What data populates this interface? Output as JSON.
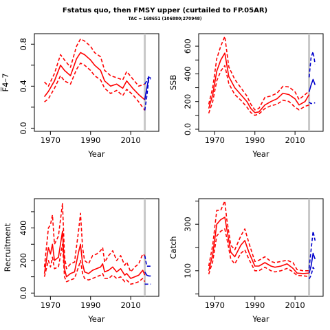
{
  "figure": {
    "title": "Fstatus quo, then FMSY upper (curtailed to FP.05AR)",
    "subtitle": "TAC = 168651 (106880;270948)"
  },
  "colors": {
    "historic": "#ff0000",
    "forecast": "#0000cc",
    "marker": "#c8c8c8"
  },
  "chart_data": [
    {
      "type": "line",
      "title": "",
      "xlabel": "Year",
      "ylabel": "F̅4–7",
      "xlim": [
        1962,
        2024
      ],
      "ylim": [
        -0.03,
        0.9
      ],
      "xticks": [
        1970,
        1990,
        2010
      ],
      "yticks": [
        0.0,
        0.4,
        0.8
      ],
      "yminor": [
        0.2,
        0.6
      ],
      "marker_year": 2017,
      "series": [
        {
          "role": "median",
          "color": "historic",
          "x": [
            1967,
            1969,
            1972,
            1975,
            1977,
            1980,
            1983,
            1985,
            1987,
            1990,
            1992,
            1995,
            1997,
            2000,
            2003,
            2006,
            2008,
            2011,
            2014,
            2017
          ],
          "y": [
            0.3,
            0.35,
            0.45,
            0.6,
            0.55,
            0.5,
            0.66,
            0.72,
            0.7,
            0.65,
            0.6,
            0.55,
            0.45,
            0.4,
            0.42,
            0.38,
            0.45,
            0.38,
            0.32,
            0.27
          ]
        },
        {
          "role": "upper",
          "color": "historic",
          "x": [
            1967,
            1969,
            1972,
            1975,
            1977,
            1980,
            1983,
            1985,
            1987,
            1990,
            1992,
            1995,
            1997,
            2000,
            2003,
            2006,
            2008,
            2011,
            2014,
            2017
          ],
          "y": [
            0.44,
            0.4,
            0.52,
            0.7,
            0.65,
            0.58,
            0.78,
            0.85,
            0.83,
            0.78,
            0.72,
            0.68,
            0.55,
            0.5,
            0.48,
            0.46,
            0.54,
            0.47,
            0.4,
            0.42
          ]
        },
        {
          "role": "lower",
          "color": "historic",
          "x": [
            1967,
            1969,
            1972,
            1975,
            1977,
            1980,
            1983,
            1985,
            1987,
            1990,
            1992,
            1995,
            1997,
            2000,
            2003,
            2006,
            2008,
            2011,
            2014,
            2017
          ],
          "y": [
            0.25,
            0.28,
            0.38,
            0.5,
            0.45,
            0.42,
            0.56,
            0.62,
            0.6,
            0.55,
            0.5,
            0.46,
            0.38,
            0.33,
            0.36,
            0.31,
            0.37,
            0.32,
            0.25,
            0.17
          ]
        },
        {
          "role": "median",
          "color": "forecast",
          "x": [
            2017,
            2018,
            2019,
            2020
          ],
          "y": [
            0.27,
            0.38,
            0.48,
            0.48
          ]
        },
        {
          "role": "upper",
          "color": "forecast",
          "x": [
            2017,
            2018,
            2019,
            2020
          ],
          "y": [
            0.42,
            0.45,
            0.49,
            0.49
          ]
        },
        {
          "role": "lower",
          "color": "forecast",
          "x": [
            2017,
            2018,
            2019,
            2020
          ],
          "y": [
            0.17,
            0.3,
            0.47,
            0.47
          ]
        }
      ]
    },
    {
      "type": "line",
      "title": "",
      "xlabel": "Year",
      "ylabel": "SSB",
      "xlim": [
        1962,
        2024
      ],
      "ylim": [
        -15,
        690
      ],
      "xticks": [
        1970,
        1990,
        2010
      ],
      "yticks": [
        0,
        200,
        400,
        600
      ],
      "yminor": [
        100,
        300,
        500
      ],
      "marker_year": 2017,
      "series": [
        {
          "role": "median",
          "color": "historic",
          "x": [
            1967,
            1969,
            1971,
            1973,
            1975,
            1977,
            1980,
            1983,
            1986,
            1988,
            1990,
            1992,
            1995,
            1998,
            2001,
            2004,
            2007,
            2010,
            2012,
            2015,
            2017
          ],
          "y": [
            150,
            250,
            420,
            500,
            550,
            380,
            300,
            250,
            200,
            150,
            120,
            125,
            175,
            200,
            220,
            260,
            250,
            220,
            175,
            200,
            250
          ]
        },
        {
          "role": "upper",
          "color": "historic",
          "x": [
            1967,
            1969,
            1971,
            1973,
            1975,
            1977,
            1980,
            1983,
            1986,
            1988,
            1990,
            1992,
            1995,
            1998,
            2001,
            2004,
            2007,
            2010,
            2012,
            2015,
            2017
          ],
          "y": [
            180,
            300,
            510,
            600,
            670,
            450,
            360,
            300,
            240,
            180,
            140,
            150,
            230,
            240,
            260,
            310,
            305,
            270,
            215,
            250,
            275
          ]
        },
        {
          "role": "lower",
          "color": "historic",
          "x": [
            1967,
            1969,
            1971,
            1973,
            1975,
            1977,
            1980,
            1983,
            1986,
            1988,
            1990,
            1992,
            1995,
            1998,
            2001,
            2004,
            2007,
            2010,
            2012,
            2015,
            2017
          ],
          "y": [
            115,
            200,
            350,
            420,
            460,
            330,
            250,
            210,
            160,
            120,
            100,
            110,
            150,
            170,
            180,
            210,
            200,
            160,
            140,
            165,
            175
          ]
        },
        {
          "role": "median",
          "color": "forecast",
          "x": [
            2017,
            2018,
            2019,
            2020
          ],
          "y": [
            270,
            320,
            360,
            320
          ]
        },
        {
          "role": "upper",
          "color": "forecast",
          "x": [
            2017,
            2018,
            2019,
            2020
          ],
          "y": [
            375,
            520,
            560,
            470
          ]
        },
        {
          "role": "lower",
          "color": "forecast",
          "x": [
            2017,
            2018,
            2019,
            2020
          ],
          "y": [
            195,
            185,
            190,
            190
          ]
        }
      ]
    },
    {
      "type": "line",
      "title": "",
      "xlabel": "Year",
      "ylabel": "Recruitment",
      "xlim": [
        1962,
        2024
      ],
      "ylim": [
        -20,
        580
      ],
      "xticks": [
        1970,
        1990,
        2010
      ],
      "yticks": [
        0,
        200,
        400
      ],
      "yminor": [
        100,
        300,
        500
      ],
      "marker_year": 2017,
      "series": [
        {
          "role": "median",
          "color": "historic",
          "x": [
            1967,
            1969,
            1970,
            1971,
            1972,
            1974,
            1976,
            1977,
            1978,
            1980,
            1982,
            1984,
            1985,
            1986,
            1987,
            1989,
            1991,
            1993,
            1995,
            1996,
            1997,
            1999,
            2001,
            2003,
            2005,
            2007,
            2008,
            2010,
            2012,
            2014,
            2016,
            2017
          ],
          "y": [
            120,
            280,
            240,
            300,
            200,
            220,
            380,
            150,
            100,
            120,
            130,
            250,
            300,
            180,
            130,
            120,
            140,
            150,
            160,
            180,
            130,
            140,
            160,
            130,
            150,
            110,
            120,
            90,
            100,
            110,
            140,
            110
          ]
        },
        {
          "role": "upper",
          "color": "historic",
          "x": [
            1967,
            1969,
            1970,
            1971,
            1972,
            1974,
            1976,
            1977,
            1978,
            1980,
            1982,
            1984,
            1985,
            1986,
            1987,
            1989,
            1991,
            1993,
            1995,
            1996,
            1997,
            1999,
            2001,
            2003,
            2005,
            2007,
            2008,
            2010,
            2012,
            2014,
            2016,
            2017
          ],
          "y": [
            160,
            400,
            420,
            480,
            300,
            350,
            550,
            230,
            150,
            180,
            190,
            380,
            490,
            280,
            200,
            180,
            230,
            240,
            260,
            280,
            190,
            230,
            260,
            200,
            230,
            170,
            190,
            130,
            160,
            180,
            240,
            230
          ]
        },
        {
          "role": "lower",
          "color": "historic",
          "x": [
            1967,
            1969,
            1970,
            1971,
            1972,
            1974,
            1976,
            1977,
            1978,
            1980,
            1982,
            1984,
            1985,
            1986,
            1987,
            1989,
            1991,
            1993,
            1995,
            1996,
            1997,
            1999,
            2001,
            2003,
            2005,
            2007,
            2008,
            2010,
            2012,
            2014,
            2016,
            2017
          ],
          "y": [
            100,
            200,
            160,
            220,
            150,
            160,
            300,
            100,
            70,
            80,
            90,
            160,
            200,
            120,
            90,
            80,
            90,
            100,
            110,
            120,
            90,
            90,
            110,
            90,
            100,
            70,
            80,
            55,
            60,
            70,
            90,
            70
          ]
        },
        {
          "role": "median",
          "color": "forecast",
          "x": [
            2017,
            2018,
            2019,
            2020
          ],
          "y": [
            130,
            110,
            105,
            105
          ]
        },
        {
          "role": "upper",
          "color": "forecast",
          "x": [
            2017,
            2018,
            2019,
            2020
          ],
          "y": [
            230,
            165,
            165,
            165
          ]
        },
        {
          "role": "lower",
          "color": "forecast",
          "x": [
            2017,
            2018,
            2019,
            2020
          ],
          "y": [
            55,
            55,
            55,
            55
          ]
        }
      ]
    },
    {
      "type": "line",
      "title": "",
      "xlabel": "Year",
      "ylabel": "Catch",
      "xlim": [
        1962,
        2024
      ],
      "ylim": [
        -10,
        410
      ],
      "xticks": [
        1970,
        1990,
        2010
      ],
      "yticks": [
        100,
        300
      ],
      "yminor": [
        0,
        200,
        400
      ],
      "marker_year": 2017,
      "series": [
        {
          "role": "median",
          "color": "historic",
          "x": [
            1967,
            1969,
            1971,
            1973,
            1975,
            1976,
            1978,
            1980,
            1983,
            1985,
            1987,
            1990,
            1992,
            1995,
            1998,
            2000,
            2003,
            2006,
            2009,
            2011,
            2014,
            2017
          ],
          "y": [
            100,
            170,
            300,
            320,
            330,
            280,
            180,
            160,
            210,
            230,
            180,
            120,
            120,
            135,
            120,
            115,
            120,
            130,
            110,
            90,
            88,
            90
          ]
        },
        {
          "role": "upper",
          "color": "historic",
          "x": [
            1967,
            1969,
            1971,
            1973,
            1975,
            1976,
            1978,
            1980,
            1983,
            1985,
            1987,
            1990,
            1992,
            1995,
            1998,
            2000,
            2003,
            2006,
            2009,
            2011,
            2014,
            2017
          ],
          "y": [
            120,
            210,
            360,
            360,
            400,
            320,
            210,
            190,
            250,
            280,
            220,
            140,
            145,
            160,
            140,
            135,
            140,
            145,
            135,
            105,
            100,
            100
          ]
        },
        {
          "role": "lower",
          "color": "historic",
          "x": [
            1967,
            1969,
            1971,
            1973,
            1975,
            1976,
            1978,
            1980,
            1983,
            1985,
            1987,
            1990,
            1992,
            1995,
            1998,
            2000,
            2003,
            2006,
            2009,
            2011,
            2014,
            2017
          ],
          "y": [
            85,
            140,
            250,
            270,
            280,
            240,
            150,
            130,
            175,
            190,
            150,
            100,
            100,
            115,
            100,
            95,
            100,
            110,
            95,
            80,
            78,
            75
          ]
        },
        {
          "role": "median",
          "color": "forecast",
          "x": [
            2017,
            2018,
            2019,
            2020
          ],
          "y": [
            90,
            120,
            175,
            150
          ]
        },
        {
          "role": "upper",
          "color": "forecast",
          "x": [
            2017,
            2018,
            2019,
            2020
          ],
          "y": [
            110,
            190,
            270,
            230
          ]
        },
        {
          "role": "lower",
          "color": "forecast",
          "x": [
            2017,
            2018,
            2019,
            2020
          ],
          "y": [
            65,
            80,
            115,
            100
          ]
        }
      ]
    }
  ]
}
